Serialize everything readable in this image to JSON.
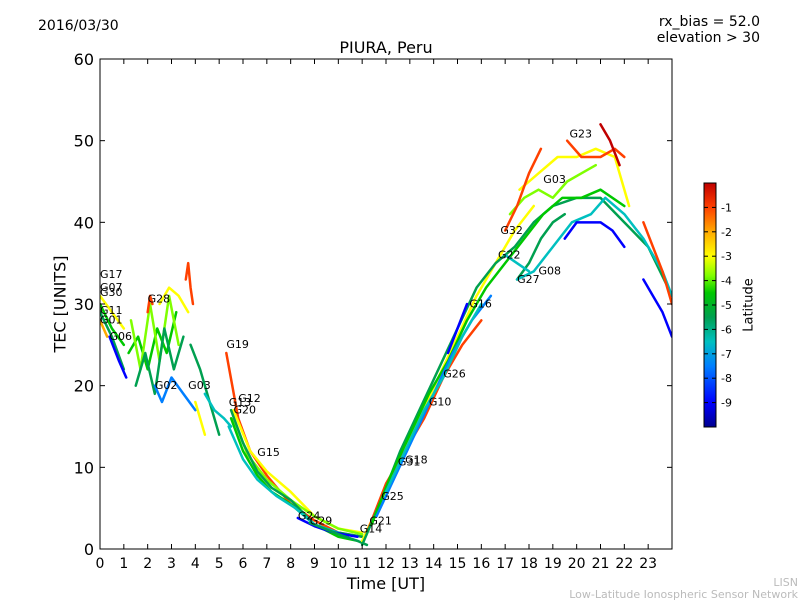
{
  "header": {
    "date": "2016/03/30",
    "rx_bias": "rx_bias = 52.0",
    "elevation": "elevation > 30"
  },
  "footer": {
    "credit_short": "LISN",
    "credit_long": "Low-Latitude Ionospheric Sensor Network"
  },
  "chart_data": {
    "type": "scatter",
    "title": "PIURA, Peru",
    "xlabel": "Time [UT]",
    "ylabel": "TEC [UNITS]",
    "xlim": [
      0,
      24
    ],
    "ylim": [
      0,
      60
    ],
    "xticks": [
      "0",
      "1",
      "2",
      "3",
      "4",
      "5",
      "6",
      "7",
      "8",
      "9",
      "10",
      "11",
      "12",
      "13",
      "14",
      "15",
      "16",
      "17",
      "18",
      "19",
      "20",
      "21",
      "22",
      "23"
    ],
    "yticks": [
      "0",
      "10",
      "20",
      "30",
      "40",
      "50",
      "60"
    ],
    "colorbar": {
      "label": "Latitude",
      "range": [
        -10,
        0
      ],
      "ticks": [
        "-1",
        "-2",
        "-3",
        "-4",
        "-5",
        "-6",
        "-7",
        "-8",
        "-9"
      ],
      "colors": [
        "#00008f",
        "#0000ff",
        "#007fff",
        "#00c0c0",
        "#00a050",
        "#00c800",
        "#7fff00",
        "#ffff00",
        "#ffaa00",
        "#ff4000",
        "#c00000"
      ]
    },
    "satellite_labels": [
      {
        "t": "G17",
        "x": 0.0,
        "y": 33.2
      },
      {
        "t": "G07",
        "x": 0.0,
        "y": 31.6
      },
      {
        "t": "G30",
        "x": 0.0,
        "y": 31.0
      },
      {
        "t": "G28",
        "x": 2.0,
        "y": 30.2
      },
      {
        "t": "G11",
        "x": 0.0,
        "y": 28.8
      },
      {
        "t": "G01",
        "x": 0.0,
        "y": 27.6
      },
      {
        "t": "G06",
        "x": 0.4,
        "y": 25.6
      },
      {
        "t": "G19",
        "x": 5.3,
        "y": 24.6
      },
      {
        "t": "G02",
        "x": 2.3,
        "y": 19.6
      },
      {
        "t": "G03",
        "x": 3.7,
        "y": 19.6
      },
      {
        "t": "G12",
        "x": 5.8,
        "y": 18.0
      },
      {
        "t": "G13",
        "x": 5.4,
        "y": 17.5
      },
      {
        "t": "G20",
        "x": 5.6,
        "y": 16.6
      },
      {
        "t": "G15",
        "x": 6.6,
        "y": 11.4
      },
      {
        "t": "G24",
        "x": 8.3,
        "y": 3.6
      },
      {
        "t": "G29",
        "x": 8.8,
        "y": 3.0
      },
      {
        "t": "G21",
        "x": 11.3,
        "y": 3.0
      },
      {
        "t": "G14",
        "x": 10.9,
        "y": 2.0
      },
      {
        "t": "G25",
        "x": 11.8,
        "y": 6.0
      },
      {
        "t": "G18",
        "x": 12.8,
        "y": 10.5
      },
      {
        "t": "G31",
        "x": 12.5,
        "y": 10.2
      },
      {
        "t": "G10",
        "x": 13.8,
        "y": 17.6
      },
      {
        "t": "G26",
        "x": 14.4,
        "y": 21.0
      },
      {
        "t": "G16",
        "x": 15.5,
        "y": 29.6
      },
      {
        "t": "G22",
        "x": 16.7,
        "y": 35.6
      },
      {
        "t": "G32",
        "x": 16.8,
        "y": 38.6
      },
      {
        "t": "G27",
        "x": 17.5,
        "y": 32.6
      },
      {
        "t": "G08",
        "x": 18.4,
        "y": 33.6
      },
      {
        "t": "G03",
        "x": 18.6,
        "y": 44.8
      },
      {
        "t": "G23",
        "x": 19.7,
        "y": 50.4
      }
    ],
    "series": [
      {
        "color": "#00c800",
        "x": [
          0,
          0.5,
          1.0
        ],
        "y": [
          30,
          27,
          25
        ]
      },
      {
        "color": "#ffff00",
        "x": [
          0,
          0.5,
          1.0
        ],
        "y": [
          31,
          29,
          27
        ]
      },
      {
        "color": "#00a050",
        "x": [
          0,
          0.5,
          1.0
        ],
        "y": [
          29,
          26,
          22
        ]
      },
      {
        "color": "#0000ff",
        "x": [
          0.4,
          0.8,
          1.1
        ],
        "y": [
          26,
          23,
          21
        ]
      },
      {
        "color": "#ffaa00",
        "x": [
          0,
          0.3
        ],
        "y": [
          28,
          26
        ]
      },
      {
        "color": "#00c800",
        "x": [
          1.2,
          1.6,
          2.0,
          2.4,
          2.8,
          3.2
        ],
        "y": [
          24,
          26,
          22,
          27,
          24,
          29
        ]
      },
      {
        "color": "#7fff00",
        "x": [
          1.3,
          1.7,
          2.1,
          2.5,
          2.9,
          3.3
        ],
        "y": [
          28,
          22,
          30,
          23,
          31,
          25
        ]
      },
      {
        "color": "#00a050",
        "x": [
          1.5,
          1.9,
          2.3,
          2.7,
          3.1,
          3.5
        ],
        "y": [
          20,
          24,
          19,
          27,
          22,
          26
        ]
      },
      {
        "color": "#ffff00",
        "x": [
          2.5,
          2.9,
          3.3,
          3.7
        ],
        "y": [
          30,
          32,
          31,
          29
        ]
      },
      {
        "color": "#ff4000",
        "x": [
          3.6,
          3.7,
          3.8,
          3.9
        ],
        "y": [
          33,
          35,
          32,
          30
        ]
      },
      {
        "color": "#ff4000",
        "x": [
          2.0,
          2.1,
          2.2
        ],
        "y": [
          29,
          31,
          30
        ]
      },
      {
        "color": "#007fff",
        "x": [
          2.3,
          2.6,
          3.0,
          3.5,
          4.0
        ],
        "y": [
          20,
          18,
          21,
          19,
          17
        ]
      },
      {
        "color": "#00a050",
        "x": [
          3.8,
          4.2,
          4.6,
          5.0
        ],
        "y": [
          25,
          22,
          18,
          14
        ]
      },
      {
        "color": "#00c0c0",
        "x": [
          4.4,
          4.8,
          5.2,
          5.5
        ],
        "y": [
          19,
          17,
          16,
          15
        ]
      },
      {
        "color": "#ffff00",
        "x": [
          4.0,
          4.2,
          4.4
        ],
        "y": [
          18,
          16,
          14
        ]
      },
      {
        "color": "#ff4000",
        "x": [
          5.3,
          5.8,
          6.3,
          7.0,
          8.0,
          9.0,
          10.0,
          11.0
        ],
        "y": [
          24,
          16,
          12,
          9,
          5.5,
          3.5,
          2,
          1.5
        ]
      },
      {
        "color": "#ffff00",
        "x": [
          5.6,
          6.3,
          7.0,
          8.0,
          9.0,
          10.0,
          11.0
        ],
        "y": [
          17,
          12,
          9.5,
          7,
          4,
          2.5,
          2
        ]
      },
      {
        "color": "#7fff00",
        "x": [
          5.6,
          6.2,
          7.0,
          8.0,
          9.0,
          10.0,
          11.0
        ],
        "y": [
          16,
          11.5,
          8.5,
          6,
          4,
          2.5,
          1.8
        ]
      },
      {
        "color": "#00a050",
        "x": [
          5.5,
          6.0,
          6.6,
          7.2,
          8.0,
          9.0,
          10.0,
          11.0
        ],
        "y": [
          17,
          13,
          9.5,
          7.5,
          6,
          3,
          2,
          1.5
        ]
      },
      {
        "color": "#00c800",
        "x": [
          5.5,
          6.0,
          6.6,
          7.2,
          8.0,
          9.0,
          10.0,
          10.8
        ],
        "y": [
          16,
          12,
          9,
          7,
          5.5,
          3,
          1.5,
          1
        ]
      },
      {
        "color": "#00c0c0",
        "x": [
          5.4,
          6.0,
          6.6,
          7.4,
          8.2,
          9.0,
          10.0
        ],
        "y": [
          15,
          11,
          8.5,
          6.5,
          5,
          3,
          2
        ]
      },
      {
        "color": "#0000ff",
        "x": [
          8.3,
          9.0,
          9.6,
          10.2,
          10.8
        ],
        "y": [
          3.8,
          2.8,
          2.2,
          1.8,
          1.5
        ]
      },
      {
        "color": "#00a050",
        "x": [
          8.8,
          9.5,
          10.2,
          10.8,
          11.2
        ],
        "y": [
          3.2,
          2.4,
          1.6,
          1,
          0.5
        ]
      },
      {
        "color": "#ffff00",
        "x": [
          11.0,
          11.8,
          12.6,
          13.4,
          14.2,
          15.0,
          15.8,
          16.6,
          17.4,
          18.2
        ],
        "y": [
          1,
          6,
          11,
          16,
          21,
          26,
          31,
          35,
          39,
          42
        ]
      },
      {
        "color": "#ff4000",
        "x": [
          11.2,
          12.0,
          12.8,
          13.6,
          14.4,
          15.2,
          16.0
        ],
        "y": [
          2,
          8,
          12,
          16,
          21,
          25,
          28
        ]
      },
      {
        "color": "#00a050",
        "x": [
          11.0,
          11.8,
          12.6,
          13.4,
          14.2,
          15.0,
          15.8,
          16.6,
          17.4,
          18.2,
          19.0,
          20.0,
          21.0,
          22.0,
          23.0,
          24.0
        ],
        "y": [
          0.5,
          6,
          12,
          17,
          22,
          27,
          32,
          35,
          37,
          40,
          42,
          43,
          43,
          40,
          37,
          31
        ]
      },
      {
        "color": "#00c800",
        "x": [
          11.4,
          12.2,
          13.0,
          13.8,
          14.6,
          15.4,
          16.2,
          17.0,
          17.8,
          18.6,
          19.4,
          20.2,
          21.0,
          22.0
        ],
        "y": [
          3,
          9,
          14,
          19,
          23,
          28,
          32,
          35,
          38,
          41,
          43,
          43,
          44,
          42
        ]
      },
      {
        "color": "#007fff",
        "x": [
          11.6,
          12.4,
          13.2,
          14.0,
          14.8,
          15.6,
          16.4
        ],
        "y": [
          4,
          9,
          14,
          19,
          24,
          28,
          31
        ]
      },
      {
        "color": "#00c0c0",
        "x": [
          12.0,
          12.8,
          13.6,
          14.4,
          15.2,
          16.0
        ],
        "y": [
          7,
          12,
          17,
          21,
          26,
          30
        ]
      },
      {
        "color": "#0000ff",
        "x": [
          14.6,
          15.0,
          15.4
        ],
        "y": [
          24,
          27,
          30
        ]
      },
      {
        "color": "#00a050",
        "x": [
          17.5,
          18.0,
          18.5,
          19.0,
          19.5
        ],
        "y": [
          33,
          35,
          38,
          40,
          41
        ]
      },
      {
        "color": "#00c0c0",
        "x": [
          17.5,
          18.2,
          19.0,
          19.8,
          20.6,
          21.2,
          22.0,
          22.8,
          23.6,
          24.0
        ],
        "y": [
          33,
          34,
          37,
          40,
          41,
          43,
          41,
          38,
          34,
          31
        ]
      },
      {
        "color": "#7fff00",
        "x": [
          17.2,
          17.8,
          18.4,
          19.0,
          19.6,
          20.2,
          20.8
        ],
        "y": [
          41,
          43,
          44,
          43,
          45,
          46,
          47
        ]
      },
      {
        "color": "#ffff00",
        "x": [
          17.6,
          18.4,
          19.2,
          20.0,
          20.8,
          21.6,
          22.2
        ],
        "y": [
          44,
          46,
          48,
          48,
          49,
          48,
          42
        ]
      },
      {
        "color": "#ff4000",
        "x": [
          17.0,
          17.5,
          18.0,
          18.5
        ],
        "y": [
          39,
          42,
          46,
          49
        ]
      },
      {
        "color": "#ff4000",
        "x": [
          19.6,
          20.2,
          21.0,
          21.6,
          22.0
        ],
        "y": [
          50,
          48,
          48,
          49,
          48
        ]
      },
      {
        "color": "#c00000",
        "x": [
          21.0,
          21.4,
          21.8
        ],
        "y": [
          52,
          50,
          47
        ]
      },
      {
        "color": "#0000ff",
        "x": [
          19.5,
          20.0,
          20.5,
          21.0,
          21.5,
          22.0
        ],
        "y": [
          38,
          40,
          40,
          40,
          39,
          37
        ]
      },
      {
        "color": "#0000ff",
        "x": [
          22.8,
          23.2,
          23.6,
          24.0
        ],
        "y": [
          33,
          31,
          29,
          26
        ]
      },
      {
        "color": "#ff4000",
        "x": [
          22.8,
          23.2,
          23.6,
          24.0
        ],
        "y": [
          40,
          37,
          34,
          30
        ]
      },
      {
        "color": "#00c0c0",
        "x": [
          17.0,
          17.5,
          18.0
        ],
        "y": [
          36,
          35,
          34
        ]
      }
    ]
  }
}
